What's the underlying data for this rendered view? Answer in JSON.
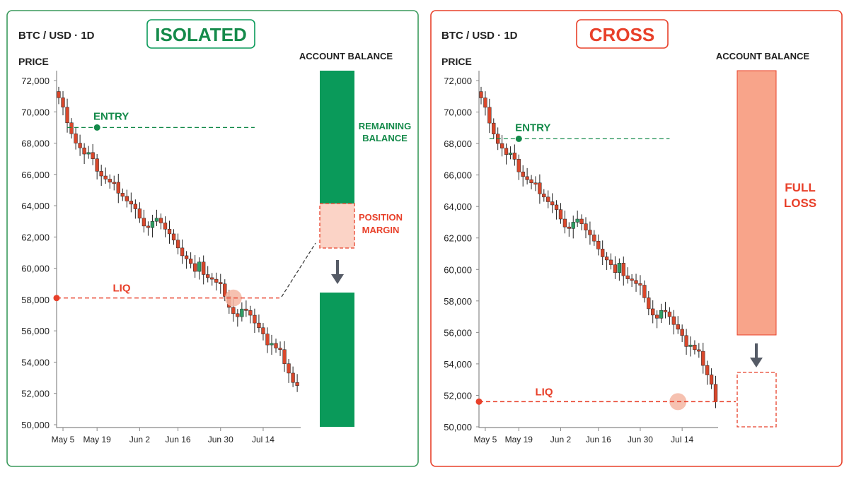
{
  "colors": {
    "green": "#0a9a5a",
    "green_dark": "#148a4a",
    "red": "#e8402a",
    "candle_up": "#2e9e63",
    "candle_down": "#d9472b",
    "wick": "#222222",
    "balance_green": "#0a9a5a",
    "margin_fill": "#fbd3c6",
    "full_loss_fill": "#f8a48a",
    "arrow": "#555b66",
    "liq_marker": "#f4b6a2"
  },
  "panels": [
    {
      "mode_label": "ISOLATED",
      "symbol_label": "BTC / USD · 1D",
      "chart_data": {
        "type": "candlestick",
        "ylabel": "PRICE",
        "ylim": [
          50000,
          72000
        ],
        "yticks": [
          "72,000",
          "70,000",
          "68,000",
          "66,000",
          "64,000",
          "62,000",
          "60,000",
          "58,000",
          "56,000",
          "54,000",
          "52,000",
          "50,000"
        ],
        "xtick_labels": [
          "May 5",
          "May 19",
          "Jun 2",
          "Jun 16",
          "Jun 30",
          "Jul 14"
        ],
        "xtick_index": [
          1,
          9,
          19,
          28,
          38,
          48
        ],
        "close": [
          70900,
          70300,
          69300,
          68600,
          68000,
          67700,
          67300,
          67400,
          67000,
          66200,
          65900,
          65700,
          65500,
          65500,
          64800,
          64600,
          64300,
          64100,
          63800,
          63200,
          62700,
          62600,
          63000,
          63200,
          62900,
          62500,
          62200,
          61800,
          61300,
          60800,
          60600,
          60300,
          59800,
          60400,
          59600,
          59400,
          59300,
          59100,
          59000,
          58200,
          57500,
          57100,
          56900,
          57400,
          57300,
          57000,
          56500,
          56200,
          55800,
          55100,
          55200,
          54900,
          54800,
          53900,
          53300,
          52700,
          52500
        ],
        "entry": {
          "label": "ENTRY",
          "price": 69000,
          "index": 9
        },
        "liq": {
          "label": "LIQ",
          "price": 58100,
          "index": 41
        }
      },
      "balance": {
        "title": "ACCOUNT BALANCE",
        "remaining_label": "REMAINING\nBALANCE",
        "margin_label": "POSITION\nMARGIN"
      }
    },
    {
      "mode_label": "CROSS",
      "symbol_label": "BTC / USD · 1D",
      "chart_data": {
        "type": "candlestick",
        "ylabel": "PRICE",
        "ylim": [
          50000,
          72000
        ],
        "yticks": [
          "72,000",
          "70,000",
          "68,000",
          "66,000",
          "64,000",
          "62,000",
          "60,000",
          "58,000",
          "56,000",
          "54,000",
          "52,000",
          "50,000"
        ],
        "xtick_labels": [
          "May 5",
          "May 19",
          "Jun 2",
          "Jun 16",
          "Jun 30",
          "Jul 14"
        ],
        "xtick_index": [
          1,
          9,
          19,
          28,
          38,
          48
        ],
        "close": [
          70900,
          70300,
          69300,
          68600,
          68000,
          67700,
          67300,
          67400,
          67000,
          66200,
          65900,
          65700,
          65500,
          65500,
          64800,
          64600,
          64300,
          64100,
          63800,
          63200,
          62700,
          62600,
          63000,
          63200,
          62900,
          62500,
          62200,
          61800,
          61300,
          60800,
          60600,
          60300,
          59800,
          60400,
          59600,
          59400,
          59300,
          59100,
          59000,
          58200,
          57500,
          57100,
          56900,
          57400,
          57300,
          57000,
          56500,
          56200,
          55800,
          55100,
          55200,
          54900,
          54800,
          53900,
          53300,
          52700,
          51600
        ],
        "entry": {
          "label": "ENTRY",
          "price": 68300,
          "index": 9
        },
        "liq": {
          "label": "LIQ",
          "price": 51600,
          "index": 47
        }
      },
      "balance": {
        "title": "ACCOUNT BALANCE",
        "loss_label": "FULL\nLOSS"
      }
    }
  ]
}
